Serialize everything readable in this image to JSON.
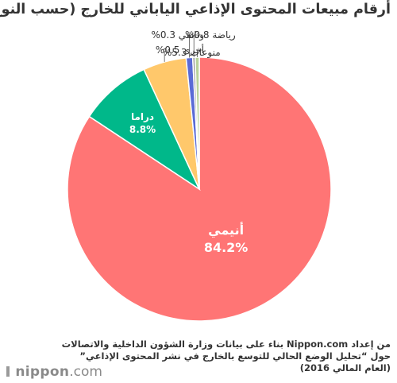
{
  "chart_data": {
    "type": "pie",
    "title": "أرقام مبيعات المحتوى الإذاعي الياباني للخارج (حسب النوع)",
    "slices": [
      {
        "label": "أنيمي",
        "value": 84.2,
        "display": "84.2%",
        "color": "#ff7575"
      },
      {
        "label": "دراما",
        "value": 8.8,
        "display": "8.8%",
        "color": "#00b88a"
      },
      {
        "label": "منوعات",
        "value": 5.3,
        "display": "5.3%",
        "color": "#ffc86b"
      },
      {
        "label": "رياضة",
        "value": 0.8,
        "display": "0.8%",
        "color": "#5b6bd6"
      },
      {
        "label": "وثائقي",
        "value": 0.3,
        "display": "0.3%",
        "color": "#9a9a9a"
      },
      {
        "label": "أخرى",
        "value": 0.5,
        "display": "0.5%",
        "color": "#b9d39a"
      }
    ]
  },
  "source": {
    "line1": "من إعداد Nippon.com بناء على بيانات وزارة الشؤون الداخلية والاتصالات",
    "line2": "حول “تحليل الوضع الحالي للتوسع بالخارج في نشر المحتوى الإذاعي”",
    "line3": "(العام المالي 2016)"
  },
  "logo": {
    "name": "nippon",
    "tld": ".com"
  }
}
